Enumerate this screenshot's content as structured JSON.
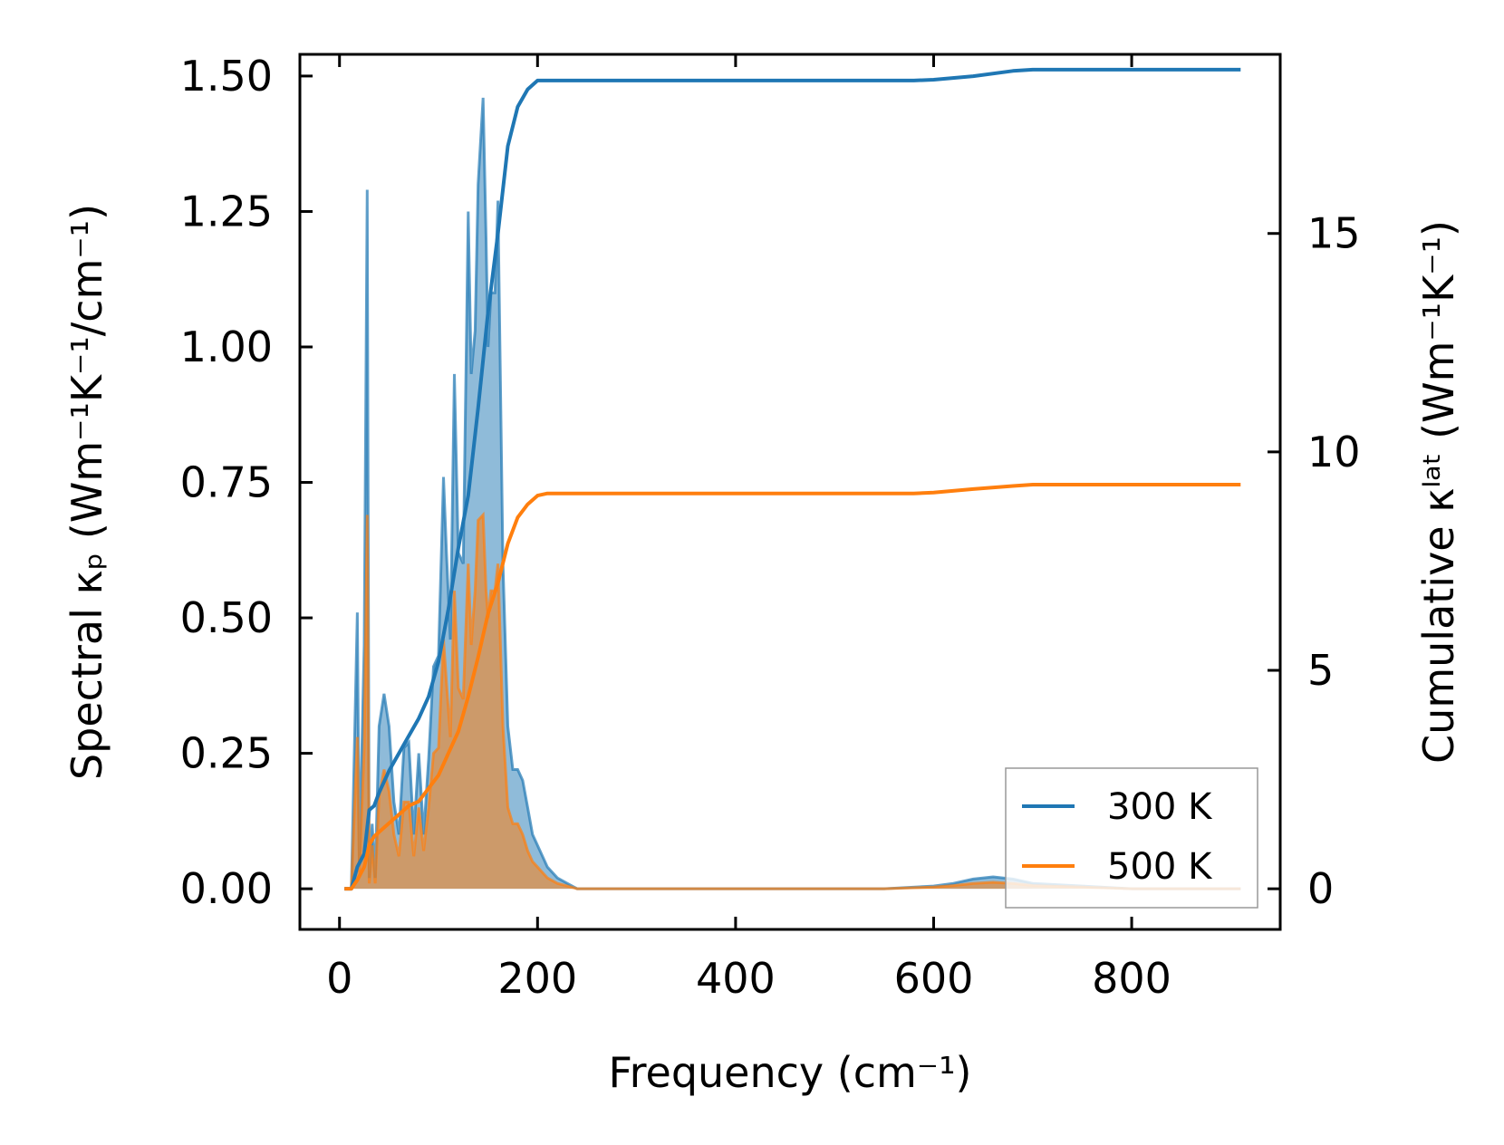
{
  "chart_data": {
    "type": "line",
    "title": "",
    "xlabel": "Frequency (cm⁻¹)",
    "ylabel": "Spectral κₚ (Wm⁻¹K⁻¹/cm⁻¹)",
    "ylabel_right": "Cumulative κˡᵃᵗ (Wm⁻¹K⁻¹)",
    "xlim": [
      -40,
      950
    ],
    "ylim": [
      -0.075,
      1.54
    ],
    "ylim_right": [
      -0.93,
      19.1
    ],
    "x_ticks": [
      0,
      200,
      400,
      600,
      800
    ],
    "x_tick_labels": [
      "0",
      "200",
      "400",
      "600",
      "800"
    ],
    "y_ticks": [
      0,
      0.25,
      0.5,
      0.75,
      1.0,
      1.25,
      1.5
    ],
    "y_tick_labels": [
      "0.00",
      "0.25",
      "0.50",
      "0.75",
      "1.00",
      "1.25",
      "1.50"
    ],
    "y_right_ticks": [
      0,
      5,
      10,
      15
    ],
    "y_right_tick_labels": [
      "0",
      "5",
      "10",
      "15"
    ],
    "legend": {
      "position": "lower-right",
      "entries": [
        "300 K",
        "500 K"
      ]
    },
    "colors": {
      "300K": "#1f77b4",
      "500K": "#ff7f0e",
      "fill300": "#1f77b4",
      "fill500": "#ff7f0e"
    },
    "series": [
      {
        "name": "300 K",
        "kind": "spectral",
        "axis": "left",
        "x": [
          5,
          12,
          18,
          20,
          25,
          28,
          30,
          33,
          36,
          40,
          45,
          50,
          55,
          60,
          65,
          70,
          75,
          80,
          85,
          90,
          95,
          100,
          105,
          108,
          112,
          116,
          120,
          125,
          130,
          133,
          137,
          140,
          145,
          148,
          150,
          153,
          157,
          160,
          165,
          170,
          175,
          180,
          185,
          190,
          195,
          200,
          210,
          220,
          230,
          240,
          260,
          400,
          550,
          600,
          620,
          640,
          660,
          680,
          700,
          750,
          800,
          910
        ],
        "values": [
          0,
          0,
          0.51,
          0.05,
          0.45,
          1.29,
          0.02,
          0.12,
          0.02,
          0.3,
          0.36,
          0.3,
          0.16,
          0.1,
          0.26,
          0.27,
          0.1,
          0.25,
          0.1,
          0.24,
          0.41,
          0.43,
          0.76,
          0.62,
          0.46,
          0.95,
          0.62,
          0.6,
          1.25,
          0.95,
          1.03,
          1.3,
          1.46,
          1.2,
          1.0,
          1.1,
          1.1,
          1.27,
          0.6,
          0.3,
          0.22,
          0.22,
          0.2,
          0.15,
          0.1,
          0.08,
          0.04,
          0.02,
          0.01,
          0,
          0,
          0,
          0,
          0.005,
          0.01,
          0.018,
          0.022,
          0.018,
          0.01,
          0.005,
          0,
          0
        ]
      },
      {
        "name": "500 K",
        "kind": "spectral",
        "axis": "left",
        "x": [
          5,
          12,
          18,
          20,
          25,
          28,
          30,
          33,
          36,
          40,
          45,
          50,
          55,
          60,
          65,
          70,
          75,
          80,
          85,
          90,
          95,
          100,
          105,
          108,
          112,
          116,
          120,
          125,
          130,
          133,
          137,
          140,
          145,
          148,
          150,
          153,
          157,
          160,
          165,
          170,
          175,
          180,
          185,
          190,
          195,
          200,
          210,
          220,
          230,
          240,
          260,
          400,
          550,
          600,
          620,
          640,
          660,
          680,
          700,
          750,
          800,
          910
        ],
        "values": [
          0,
          0,
          0.28,
          0.03,
          0.26,
          0.69,
          0.01,
          0.08,
          0.01,
          0.17,
          0.22,
          0.18,
          0.1,
          0.06,
          0.16,
          0.16,
          0.06,
          0.15,
          0.07,
          0.15,
          0.25,
          0.26,
          0.46,
          0.38,
          0.28,
          0.55,
          0.37,
          0.35,
          0.6,
          0.45,
          0.55,
          0.68,
          0.69,
          0.55,
          0.5,
          0.55,
          0.55,
          0.6,
          0.3,
          0.15,
          0.12,
          0.12,
          0.1,
          0.07,
          0.05,
          0.04,
          0.02,
          0.01,
          0.005,
          0,
          0,
          0,
          0,
          0.003,
          0.006,
          0.01,
          0.012,
          0.01,
          0.006,
          0.003,
          0,
          0
        ]
      },
      {
        "name": "300 K",
        "kind": "cumulative",
        "axis": "right",
        "x": [
          5,
          12,
          18,
          25,
          30,
          35,
          40,
          50,
          60,
          70,
          80,
          90,
          100,
          110,
          120,
          130,
          140,
          150,
          160,
          170,
          180,
          190,
          200,
          210,
          230,
          260,
          400,
          580,
          600,
          640,
          680,
          700,
          800,
          910
        ],
        "values": [
          0,
          0,
          0.5,
          0.8,
          1.8,
          1.9,
          2.2,
          2.7,
          3.1,
          3.5,
          3.9,
          4.4,
          5.2,
          6.4,
          7.8,
          9.0,
          11.0,
          13.2,
          15.0,
          17.0,
          17.9,
          18.3,
          18.5,
          18.5,
          18.5,
          18.5,
          18.5,
          18.5,
          18.52,
          18.6,
          18.72,
          18.75,
          18.75,
          18.75
        ]
      },
      {
        "name": "500 K",
        "kind": "cumulative",
        "axis": "right",
        "x": [
          5,
          12,
          18,
          25,
          30,
          35,
          40,
          50,
          60,
          70,
          80,
          90,
          100,
          110,
          120,
          130,
          140,
          150,
          160,
          170,
          180,
          190,
          200,
          210,
          230,
          260,
          400,
          580,
          600,
          640,
          680,
          700,
          800,
          910
        ],
        "values": [
          0,
          0,
          0.2,
          0.5,
          1.0,
          1.2,
          1.3,
          1.5,
          1.7,
          1.9,
          2.0,
          2.3,
          2.6,
          3.1,
          3.6,
          4.4,
          5.3,
          6.3,
          7.0,
          7.9,
          8.5,
          8.8,
          9.0,
          9.05,
          9.05,
          9.05,
          9.05,
          9.05,
          9.07,
          9.15,
          9.22,
          9.25,
          9.25,
          9.25
        ]
      }
    ]
  }
}
